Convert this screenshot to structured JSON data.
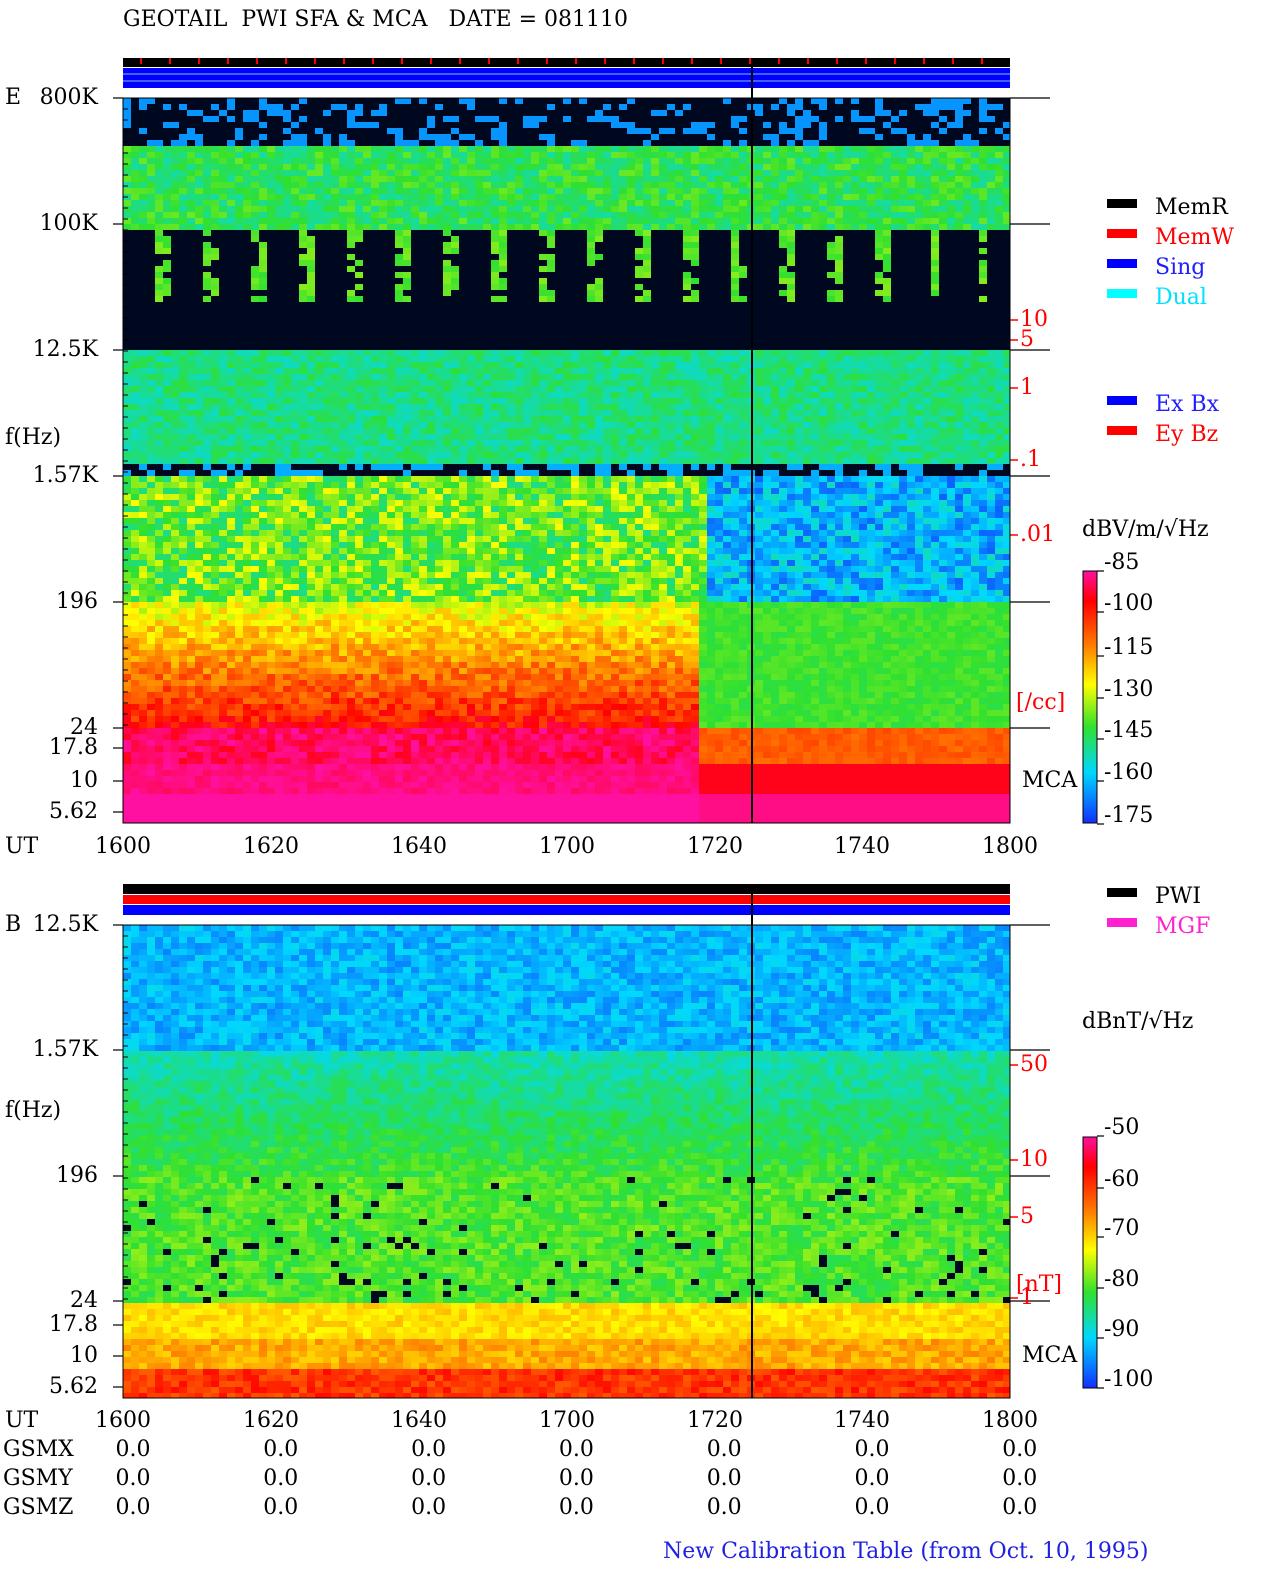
{
  "header": {
    "title": "GEOTAIL  PWI SFA & MCA   DATE = 081110"
  },
  "panel_e": {
    "label": "E",
    "y_label": "f(Hz)",
    "x_label": "UT",
    "freq_ticks": [
      "800K",
      "100K",
      "12.5K",
      "1.57K",
      "196",
      "24",
      "17.8",
      "10",
      "5.62"
    ],
    "time_ticks": [
      "1600",
      "1620",
      "1640",
      "1700",
      "1720",
      "1740",
      "1800"
    ],
    "density_ticks": [
      "10",
      "5",
      "1",
      ".1",
      ".01"
    ],
    "density_unit": "[/cc]",
    "mca": "MCA",
    "colorbar": {
      "unit": "dBV/m/√Hz",
      "ticks": [
        "-85",
        "-100",
        "-115",
        "-130",
        "-145",
        "-160",
        "-175"
      ]
    },
    "legend_mode": [
      "MemR",
      "MemW",
      "Sing",
      "Dual"
    ],
    "legend_component": [
      "Ex Bx",
      "Ey Bz"
    ]
  },
  "panel_b": {
    "label": "B",
    "y_label": "f(Hz)",
    "x_label": "UT",
    "freq_ticks": [
      "12.5K",
      "1.57K",
      "196",
      "24",
      "17.8",
      "10",
      "5.62"
    ],
    "time_ticks": [
      "1600",
      "1620",
      "1640",
      "1700",
      "1720",
      "1740",
      "1800"
    ],
    "field_ticks": [
      "50",
      "10",
      "5",
      "1"
    ],
    "field_unit": "[nT]",
    "mca": "MCA",
    "colorbar": {
      "unit": "dBnT/√Hz",
      "ticks": [
        "-50",
        "-60",
        "-70",
        "-80",
        "-90",
        "-100"
      ]
    },
    "legend_source": [
      "PWI",
      "MGF"
    ]
  },
  "orbit": {
    "rows": [
      {
        "label": "GSMX",
        "values": [
          "0.0",
          "0.0",
          "0.0",
          "0.0",
          "0.0",
          "0.0",
          "0.0"
        ]
      },
      {
        "label": "GSMY",
        "values": [
          "0.0",
          "0.0",
          "0.0",
          "0.0",
          "0.0",
          "0.0",
          "0.0"
        ]
      },
      {
        "label": "GSMZ",
        "values": [
          "0.0",
          "0.0",
          "0.0",
          "0.0",
          "0.0",
          "0.0",
          "0.0"
        ]
      }
    ]
  },
  "footer": "New Calibration Table (from Oct. 10, 1995)"
}
